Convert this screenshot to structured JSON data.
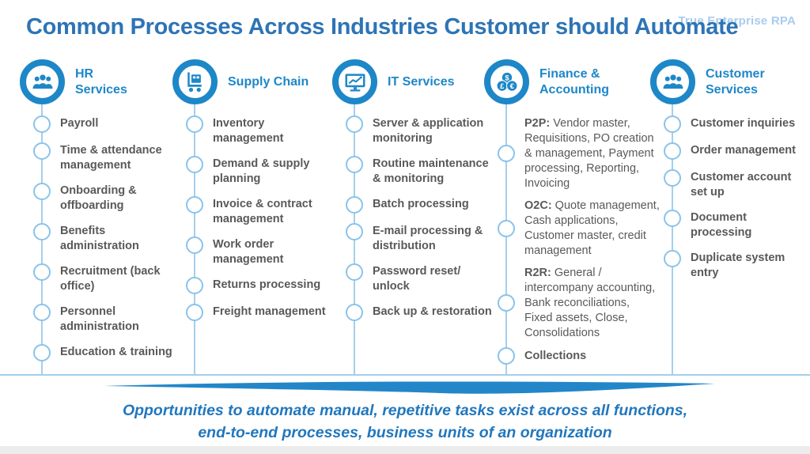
{
  "watermark": "True Enterprise RPA",
  "title": "Common Processes Across Industries Customer should Automate",
  "columns": [
    {
      "id": "hr-services",
      "label": "HR\nServices",
      "icon": "people-group-icon",
      "items": [
        "Payroll",
        "Time & attendance management",
        "Onboarding & offboarding",
        "Benefits administration",
        "Recruitment (back office)",
        "Personnel administration",
        "Education & training"
      ]
    },
    {
      "id": "supply-chain",
      "label": "Supply Chain",
      "icon": "hand-truck-icon",
      "items": [
        "Inventory management",
        "Demand & supply planning",
        "Invoice & contract management",
        "Work order management",
        "Returns processing",
        "Freight management"
      ]
    },
    {
      "id": "it-services",
      "label": "IT Services",
      "icon": "monitor-chart-icon",
      "items": [
        "Server & application monitoring",
        "Routine maintenance & monitoring",
        "Batch processing",
        "E-mail processing & distribution",
        "Password reset/ unlock",
        "Back up & restoration"
      ]
    },
    {
      "id": "finance-accounting",
      "label": "Finance &\nAccounting",
      "icon": "coins-icon",
      "items": [
        {
          "prefix": "P2P:",
          "text": "Vendor master, Requisitions, PO creation & management, Payment processing, Reporting, Invoicing"
        },
        {
          "prefix": "O2C:",
          "text": "Quote management, Cash applications, Customer master, credit management"
        },
        {
          "prefix": "R2R:",
          "text": "General / intercompany accounting, Bank reconciliations,  Fixed assets, Close, Consolidations"
        },
        {
          "text": "Collections",
          "bold": true
        }
      ]
    },
    {
      "id": "customer-services",
      "label": "Customer\nServices",
      "icon": "people-group-icon",
      "items": [
        "Customer inquiries",
        "Order management",
        "Customer account set up",
        "Document processing",
        "Duplicate system entry"
      ]
    }
  ],
  "footer": {
    "line1": "Opportunities to automate manual, repetitive tasks exist across all functions,",
    "line2": "end-to-end processes, business units of an organization"
  },
  "colors": {
    "title_blue": "#2e74b5",
    "icon_blue": "#1d87c8",
    "timeline_blue": "#a5cfec",
    "node_border_blue": "#8ac3ea",
    "item_gray": "#595959",
    "footer_blue": "#2177bd",
    "watermark_blue": "#a9ccee"
  }
}
